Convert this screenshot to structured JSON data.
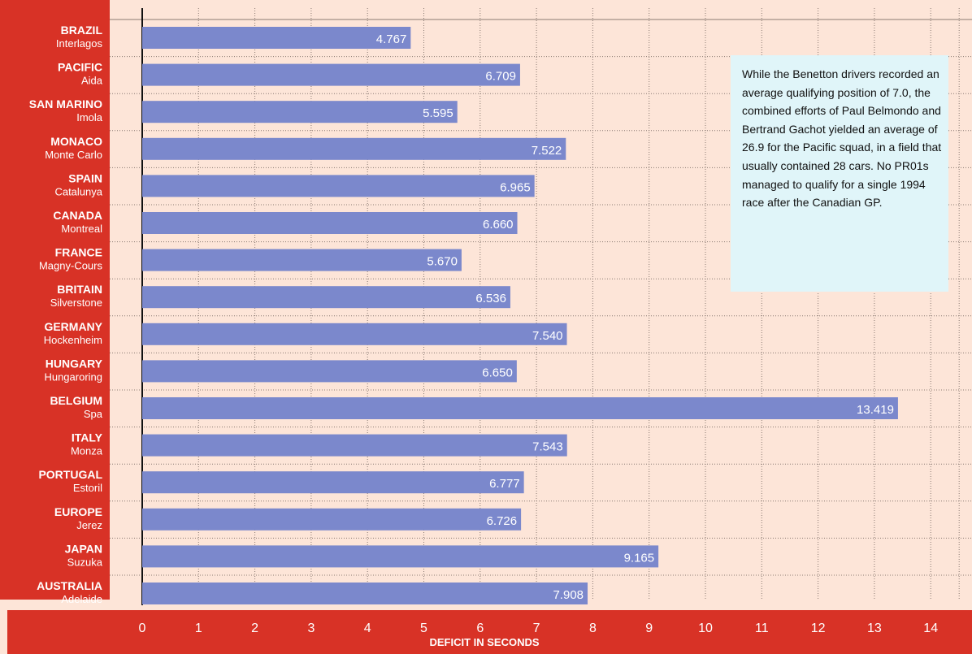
{
  "chart_data": {
    "type": "bar",
    "orientation": "horizontal",
    "categories": [
      {
        "name": "BRAZIL",
        "circuit": "Interlagos"
      },
      {
        "name": "PACIFIC",
        "circuit": "Aida"
      },
      {
        "name": "SAN MARINO",
        "circuit": "Imola"
      },
      {
        "name": "MONACO",
        "circuit": "Monte Carlo"
      },
      {
        "name": "SPAIN",
        "circuit": "Catalunya"
      },
      {
        "name": "CANADA",
        "circuit": "Montreal"
      },
      {
        "name": "FRANCE",
        "circuit": "Magny-Cours"
      },
      {
        "name": "BRITAIN",
        "circuit": "Silverstone"
      },
      {
        "name": "GERMANY",
        "circuit": "Hockenheim"
      },
      {
        "name": "HUNGARY",
        "circuit": "Hungaroring"
      },
      {
        "name": "BELGIUM",
        "circuit": "Spa"
      },
      {
        "name": "ITALY",
        "circuit": "Monza"
      },
      {
        "name": "PORTUGAL",
        "circuit": "Estoril"
      },
      {
        "name": "EUROPE",
        "circuit": "Jerez"
      },
      {
        "name": "JAPAN",
        "circuit": "Suzuka"
      },
      {
        "name": "AUSTRALIA",
        "circuit": "Adelaide"
      }
    ],
    "values": [
      4.767,
      6.709,
      5.595,
      7.522,
      6.965,
      6.66,
      5.67,
      6.536,
      7.54,
      6.65,
      13.419,
      7.543,
      6.777,
      6.726,
      9.165,
      7.908
    ],
    "value_labels": [
      "4.767",
      "6.709",
      "5.595",
      "7.522",
      "6.965",
      "6.660",
      "5.670",
      "6.536",
      "7.540",
      "6.650",
      "13.419",
      "7.543",
      "6.777",
      "6.726",
      "9.165",
      "7.908"
    ],
    "xticks": [
      "0",
      "1",
      "2",
      "3",
      "4",
      "5",
      "6",
      "7",
      "8",
      "9",
      "10",
      "11",
      "12",
      "13",
      "14"
    ],
    "xlim": [
      0,
      14.6
    ],
    "xlabel": "DEFICIT IN SECONDS",
    "grid": true,
    "colors": {
      "bar": "#7b88cc",
      "background": "#fde5d8",
      "label_panel": "#d83226",
      "grid": "#8a7a72"
    }
  },
  "annotation": "While the Benetton drivers recorded an average qualifying position of 7.0, the combined efforts of Paul Belmondo and Bertrand Gachot yielded an average of 26.9 for the Pacific squad, in a field that usually contained 28 cars. No PR01s managed to qualify for a single 1994 race after the Canadian GP."
}
